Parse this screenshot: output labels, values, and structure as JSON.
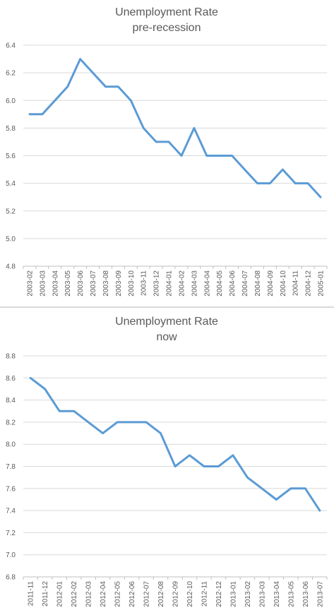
{
  "chart_data": [
    {
      "type": "line",
      "title": "Unemployment Rate",
      "subtitle": "pre-recession",
      "categories": [
        "2003-02",
        "2003-03",
        "2003-04",
        "2003-05",
        "2003-06",
        "2003-07",
        "2003-08",
        "2003-09",
        "2003-10",
        "2003-11",
        "2003-12",
        "2004-01",
        "2004-02",
        "2004-03",
        "2004-04",
        "2004-05",
        "2004-06",
        "2004-07",
        "2004-08",
        "2004-09",
        "2004-10",
        "2004-11",
        "2004-12",
        "2005-01"
      ],
      "values": [
        5.9,
        5.9,
        6.0,
        6.1,
        6.3,
        6.2,
        6.1,
        6.1,
        6.0,
        5.8,
        5.7,
        5.7,
        5.6,
        5.8,
        5.6,
        5.6,
        5.6,
        5.5,
        5.4,
        5.4,
        5.5,
        5.4,
        5.4,
        5.3
      ],
      "yticks": [
        "4.8",
        "5.0",
        "5.2",
        "5.4",
        "5.6",
        "5.8",
        "6.0",
        "6.2",
        "6.4"
      ],
      "ylim": [
        4.8,
        6.4
      ],
      "grid": true,
      "color": "#5b9bd5"
    },
    {
      "type": "line",
      "title": "Unemployment Rate",
      "subtitle": "now",
      "categories": [
        "2011-11",
        "2011-12",
        "2012-01",
        "2012-02",
        "2012-03",
        "2012-04",
        "2012-05",
        "2012-06",
        "2012-07",
        "2012-08",
        "2012-09",
        "2012-10",
        "2012-11",
        "2012-12",
        "2013-01",
        "2013-02",
        "2013-03",
        "2013-04",
        "2013-05",
        "2013-06",
        "2013-07"
      ],
      "values": [
        8.6,
        8.5,
        8.3,
        8.3,
        8.2,
        8.1,
        8.2,
        8.2,
        8.2,
        8.1,
        7.8,
        7.9,
        7.8,
        7.8,
        7.9,
        7.7,
        7.6,
        7.5,
        7.6,
        7.6,
        7.4
      ],
      "yticks": [
        "6.8",
        "7.0",
        "7.2",
        "7.4",
        "7.6",
        "7.8",
        "8.0",
        "8.2",
        "8.4",
        "8.6",
        "8.8"
      ],
      "ylim": [
        6.8,
        8.8
      ],
      "grid": true,
      "color": "#5b9bd5"
    }
  ]
}
